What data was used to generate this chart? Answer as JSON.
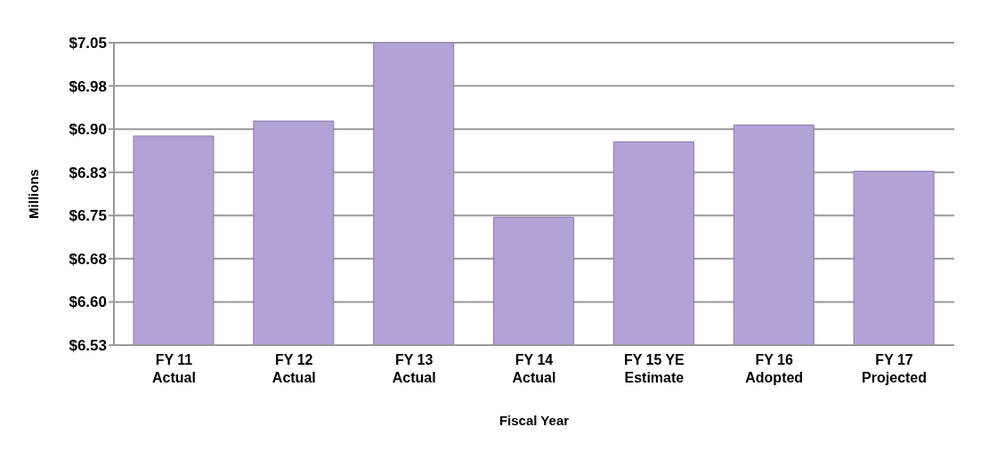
{
  "chart_data": {
    "type": "bar",
    "xlabel": "Fiscal Year",
    "ylabel": "Millions",
    "categories": [
      "FY 11\nActual",
      "FY 12\nActual",
      "FY 13\nActual",
      "FY 14\nActual",
      "FY 15 YE\nEstimate",
      "FY 16\nAdopted",
      "FY 17\nProjected"
    ],
    "values": [
      6.888,
      6.914,
      7.05,
      6.747,
      6.878,
      6.907,
      6.827
    ],
    "color": "#b3a2d6",
    "ylim": [
      6.525,
      7.05
    ],
    "yticks": [
      {
        "value": 6.525,
        "label": "$6.53"
      },
      {
        "value": 6.6,
        "label": "$6.60"
      },
      {
        "value": 6.675,
        "label": "$6.68"
      },
      {
        "value": 6.75,
        "label": "$6.75"
      },
      {
        "value": 6.825,
        "label": "$6.83"
      },
      {
        "value": 6.9,
        "label": "$6.90"
      },
      {
        "value": 6.975,
        "label": "$6.98"
      },
      {
        "value": 7.05,
        "label": "$7.05"
      }
    ],
    "grid": "y"
  }
}
